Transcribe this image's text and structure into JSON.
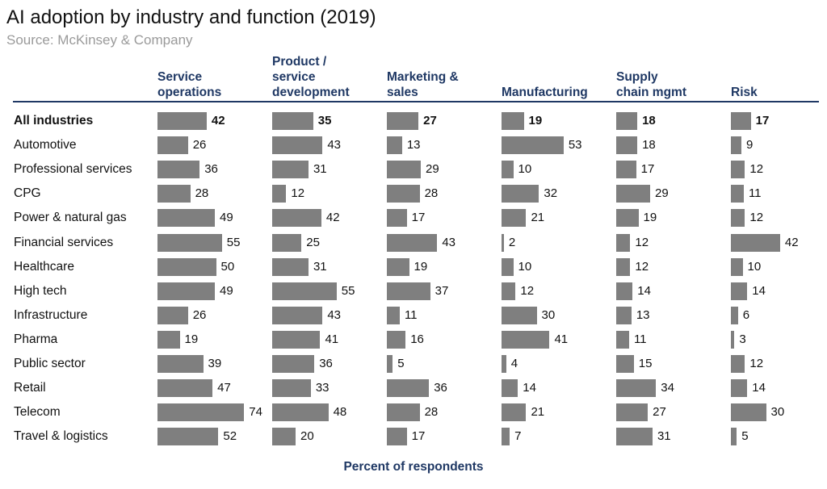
{
  "chart_data": {
    "type": "bar",
    "title": "AI adoption by industry and function (2019)",
    "subtitle": "Source: McKinsey & Company",
    "xlabel": "Percent of respondents",
    "functions": [
      {
        "label": [
          "Service",
          "operations"
        ]
      },
      {
        "label": [
          "Product /",
          "service",
          "development"
        ]
      },
      {
        "label": [
          "Marketing &",
          "sales"
        ]
      },
      {
        "label": [
          "Manufacturing"
        ]
      },
      {
        "label": [
          "Supply",
          "chain mgmt"
        ]
      },
      {
        "label": [
          "Risk"
        ]
      }
    ],
    "categories": [
      "All industries",
      "Automotive",
      "Professional services",
      "CPG",
      "Power & natural gas",
      "Financial services",
      "Healthcare",
      "High tech",
      "Infrastructure",
      "Pharma",
      "Public sector",
      "Retail",
      "Telecom",
      "Travel & logistics"
    ],
    "values": [
      [
        42,
        35,
        27,
        19,
        18,
        17
      ],
      [
        26,
        43,
        13,
        53,
        18,
        9
      ],
      [
        36,
        31,
        29,
        10,
        17,
        12
      ],
      [
        28,
        12,
        28,
        32,
        29,
        11
      ],
      [
        49,
        42,
        17,
        21,
        19,
        12
      ],
      [
        55,
        25,
        43,
        2,
        12,
        42
      ],
      [
        50,
        31,
        19,
        10,
        12,
        10
      ],
      [
        49,
        55,
        37,
        12,
        14,
        14
      ],
      [
        26,
        43,
        11,
        30,
        13,
        6
      ],
      [
        19,
        41,
        16,
        41,
        11,
        3
      ],
      [
        39,
        36,
        5,
        4,
        15,
        12
      ],
      [
        47,
        33,
        36,
        14,
        34,
        14
      ],
      [
        74,
        48,
        28,
        21,
        27,
        30
      ],
      [
        52,
        20,
        17,
        7,
        31,
        5
      ]
    ],
    "highlight_row": "All industries",
    "bar_color": "#7f7f7f",
    "header_color": "#1f3864"
  }
}
